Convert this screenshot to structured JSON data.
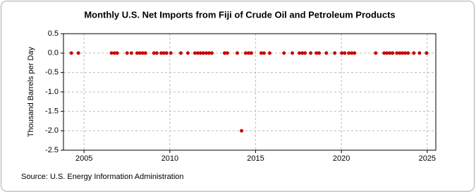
{
  "chart_data": {
    "type": "scatter",
    "title": "Monthly U.S. Net Imports from Fiji of Crude Oil and Petroleum Products",
    "ylabel": "Thousand Barrels per Day",
    "source": "Source: U.S. Energy Information Administration",
    "color": "#cc0000",
    "x": [
      2004.26,
      2004.67,
      2006.6,
      2006.77,
      2006.93,
      2007.51,
      2007.76,
      2008.09,
      2008.25,
      2008.42,
      2008.58,
      2009.07,
      2009.24,
      2009.49,
      2009.65,
      2009.81,
      2010.06,
      2010.64,
      2011.05,
      2011.46,
      2011.63,
      2011.79,
      2011.95,
      2012.12,
      2012.28,
      2012.45,
      2013.19,
      2013.35,
      2013.93,
      2014.18,
      2014.42,
      2014.59,
      2014.75,
      2015.33,
      2015.49,
      2015.82,
      2016.65,
      2017.14,
      2017.55,
      2017.72,
      2017.88,
      2018.21,
      2018.54,
      2018.7,
      2019.12,
      2019.61,
      2020.02,
      2020.19,
      2020.43,
      2020.6,
      2020.76,
      2022.0,
      2022.49,
      2022.65,
      2022.82,
      2022.98,
      2023.23,
      2023.4,
      2023.56,
      2023.72,
      2023.89,
      2024.22,
      2024.55,
      2024.96
    ],
    "values": [
      0,
      0,
      0,
      0,
      0,
      0,
      0,
      0,
      0,
      0,
      0,
      0,
      0,
      0,
      0,
      0,
      0,
      0,
      0,
      0,
      0,
      0,
      0,
      0,
      0,
      0,
      0,
      0,
      0,
      -2,
      0,
      0,
      0,
      0,
      0,
      0,
      0,
      0,
      0,
      0,
      0,
      0,
      0,
      0,
      0,
      0,
      0,
      0,
      0,
      0,
      0,
      0,
      0,
      0,
      0,
      0,
      0,
      0,
      0,
      0,
      0,
      0,
      0,
      0
    ],
    "xlim": [
      2003.8,
      2025.5
    ],
    "xticks": [
      2005,
      2010,
      2015,
      2020,
      2025
    ],
    "ylim": [
      -2.5,
      0.5
    ],
    "yticks": [
      0.5,
      {
        "value": 0,
        "label": "0.0"
      },
      -0.5,
      {
        "value": -1,
        "label": "-1.0"
      },
      -1.5,
      {
        "value": -2,
        "label": "-2.0"
      },
      -2.5
    ],
    "grid": true
  }
}
